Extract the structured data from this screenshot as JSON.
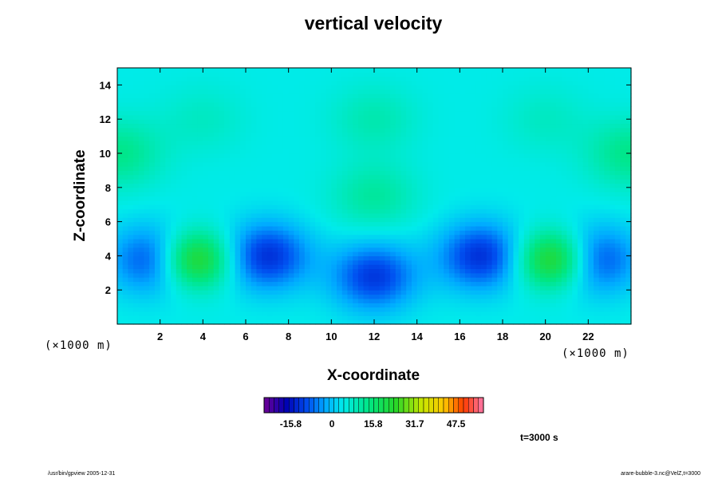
{
  "chart_data": {
    "type": "heatmap",
    "title": "vertical velocity",
    "xlabel": "X-coordinate",
    "ylabel": "Z-coordinate",
    "x_unit_label": "(×1000 m)",
    "y_unit_label": "(×1000 m)",
    "xlim": [
      0,
      24
    ],
    "ylim": [
      0,
      15
    ],
    "x_ticks": [
      2,
      4,
      6,
      8,
      10,
      12,
      14,
      16,
      18,
      20,
      22
    ],
    "y_ticks": [
      2,
      4,
      6,
      8,
      10,
      12,
      14
    ],
    "colorbar": {
      "range": [
        -26,
        58
      ],
      "tick_labels": [
        "-15.8",
        "0",
        "15.8",
        "31.7",
        "47.5"
      ],
      "tick_values": [
        -15.8,
        0,
        15.8,
        31.7,
        47.5
      ]
    },
    "features": [
      {
        "x": 3.6,
        "z": 3.8,
        "value": 30
      },
      {
        "x": 20.4,
        "z": 3.8,
        "value": 30
      },
      {
        "x": 12.0,
        "z": 7.5,
        "value": 12
      },
      {
        "x": 12.0,
        "z": 12.0,
        "value": 10
      },
      {
        "x": 12.0,
        "z": 2.8,
        "value": -14
      },
      {
        "x": 7.0,
        "z": 4.0,
        "value": -15
      },
      {
        "x": 17.0,
        "z": 4.0,
        "value": -15
      },
      {
        "x": 1.7,
        "z": 3.8,
        "value": -13
      },
      {
        "x": 22.3,
        "z": 3.8,
        "value": -13
      },
      {
        "x": 0.1,
        "z": 10.0,
        "value": 14
      },
      {
        "x": 23.9,
        "z": 10.0,
        "value": 14
      },
      {
        "x": 4.0,
        "z": 12.0,
        "value": 8
      },
      {
        "x": 20.0,
        "z": 12.0,
        "value": 8
      }
    ],
    "time_label": "t=3000 s"
  },
  "footer": {
    "left": "/usr/bin/gpview 2005-12-31",
    "right": "arare-bubble-3.nc@VelZ,t=3000"
  }
}
